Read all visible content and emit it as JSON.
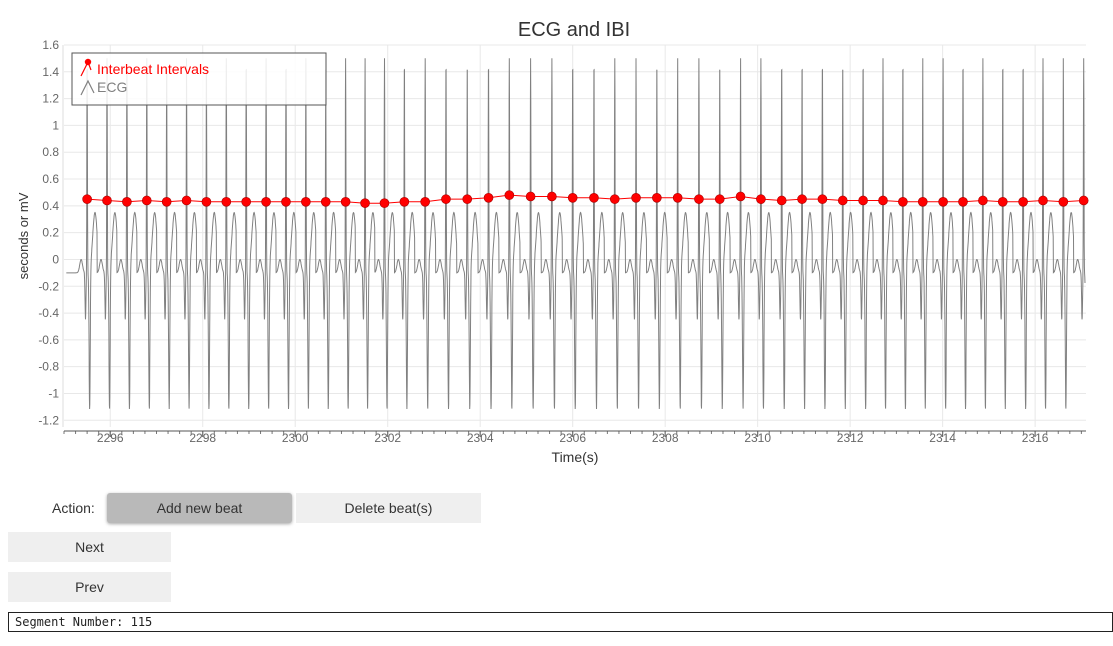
{
  "chart_data": {
    "type": "line",
    "title": "ECG and IBI",
    "xlabel": "Time(s)",
    "ylabel": "seconds or mV",
    "xlim": [
      2295,
      2317.1
    ],
    "ylim": [
      -1.25,
      1.6
    ],
    "x_ticks": [
      2296,
      2298,
      2300,
      2302,
      2304,
      2306,
      2308,
      2310,
      2312,
      2314,
      2316
    ],
    "x_tick_labels": [
      "2296",
      "2298",
      "2300",
      "2302",
      "2304",
      "2306",
      "2308",
      "2310",
      "2312",
      "2314",
      "2316"
    ],
    "y_ticks": [
      -1.2,
      -1,
      -0.8,
      -0.6,
      -0.4,
      -0.2,
      0,
      0.2,
      0.4,
      0.6,
      0.8,
      1,
      1.2,
      1.4,
      1.6
    ],
    "y_tick_labels": [
      "-1.2",
      "-1",
      "-0.8",
      "-0.6",
      "-0.4",
      "-0.2",
      "0",
      "0.2",
      "0.4",
      "0.6",
      "0.8",
      "1",
      "1.2",
      "1.4",
      "1.6"
    ],
    "grid": true,
    "legend_position": "top-left",
    "series": [
      {
        "name": "Interbeat Intervals",
        "color": "#ff0000",
        "marker": "circle",
        "x": [
          2295.5,
          2295.93,
          2296.36,
          2296.79,
          2297.22,
          2297.65,
          2298.08,
          2298.51,
          2298.94,
          2299.37,
          2299.8,
          2300.23,
          2300.66,
          2301.09,
          2301.51,
          2301.93,
          2302.36,
          2302.81,
          2303.26,
          2303.72,
          2304.18,
          2304.63,
          2305.09,
          2305.55,
          2306.0,
          2306.46,
          2306.91,
          2307.37,
          2307.82,
          2308.27,
          2308.73,
          2309.18,
          2309.63,
          2310.07,
          2310.52,
          2310.96,
          2311.4,
          2311.84,
          2312.28,
          2312.71,
          2313.14,
          2313.57,
          2314.01,
          2314.44,
          2314.87,
          2315.3,
          2315.74,
          2316.17,
          2316.61,
          2317.05
        ],
        "y": [
          0.45,
          0.44,
          0.43,
          0.44,
          0.43,
          0.44,
          0.43,
          0.43,
          0.43,
          0.43,
          0.43,
          0.43,
          0.43,
          0.43,
          0.42,
          0.42,
          0.43,
          0.43,
          0.45,
          0.45,
          0.46,
          0.48,
          0.47,
          0.47,
          0.46,
          0.46,
          0.45,
          0.46,
          0.46,
          0.46,
          0.45,
          0.45,
          0.47,
          0.45,
          0.44,
          0.45,
          0.45,
          0.44,
          0.44,
          0.44,
          0.43,
          0.43,
          0.43,
          0.43,
          0.44,
          0.43,
          0.43,
          0.44,
          0.43,
          0.44
        ]
      },
      {
        "name": "ECG",
        "color": "#808080",
        "waveform": "periodic QRS complexes; one beat per interbeat-interval point",
        "peak_amplitude_mV": 1.5,
        "trough_amplitude_mV": -1.1,
        "baseline_mV": -0.1
      }
    ]
  },
  "controls": {
    "action_label": "Action:",
    "add_beat_label": "Add new beat",
    "delete_beat_label": "Delete beat(s)",
    "next_label": "Next",
    "prev_label": "Prev",
    "segment_text": "Segment Number: 115"
  }
}
